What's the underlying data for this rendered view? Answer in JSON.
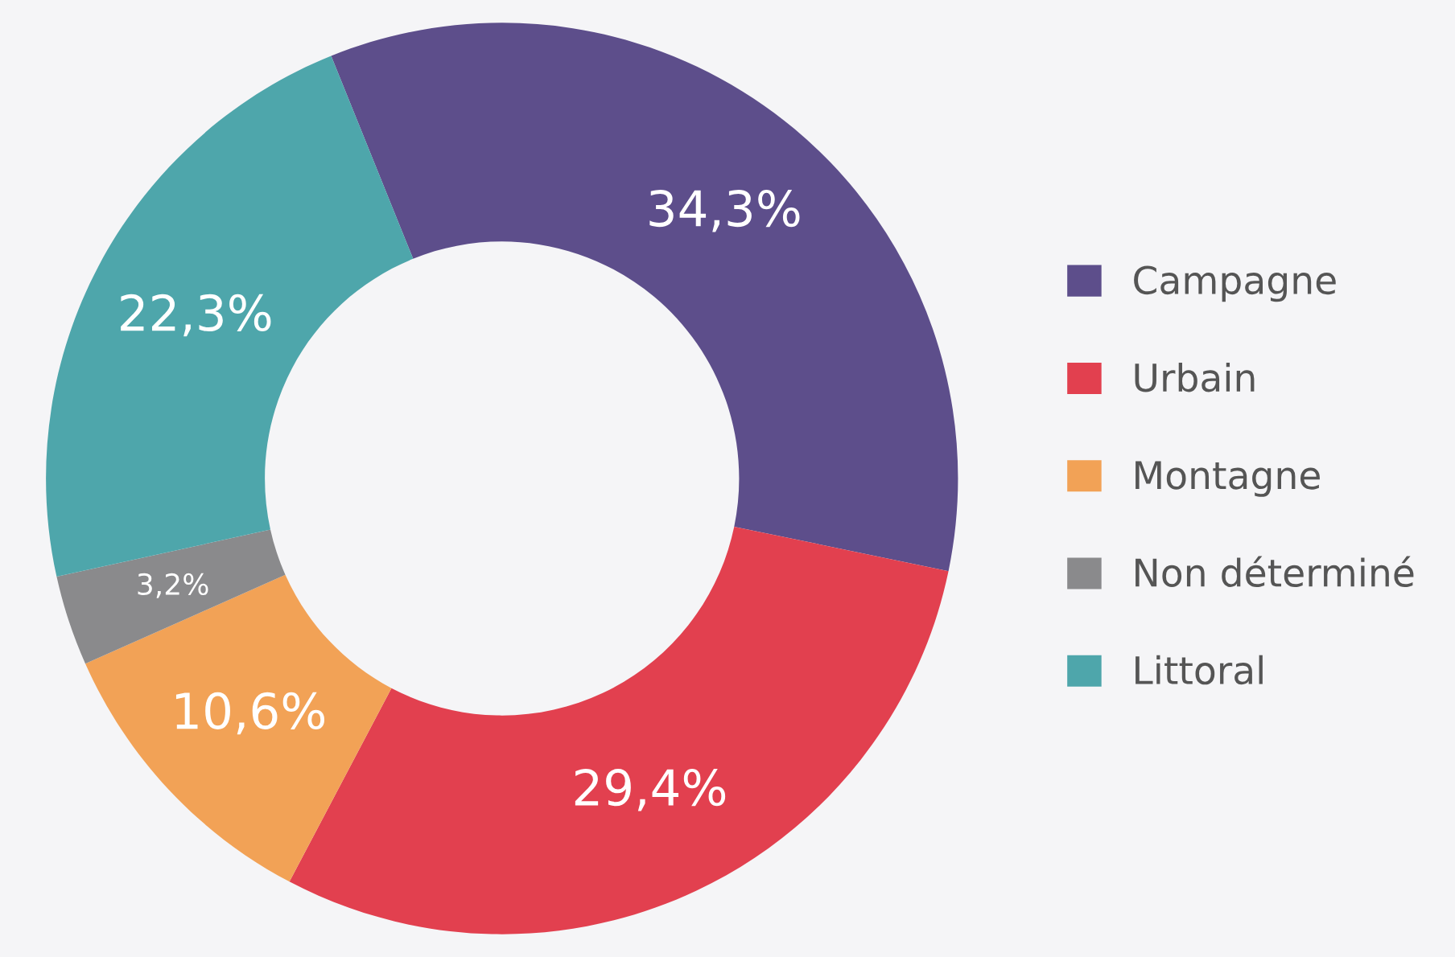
{
  "chart_data": {
    "type": "donut",
    "categories": [
      "Campagne",
      "Urbain",
      "Montagne",
      "Non déterminé",
      "Littoral"
    ],
    "values": [
      34.3,
      29.4,
      10.6,
      3.2,
      22.3
    ],
    "colors": [
      "#5d4e8b",
      "#e2404f",
      "#f2a256",
      "#8a8a8c",
      "#4ea6ab"
    ],
    "value_labels": [
      "34,3%",
      "29,4%",
      "10,6%",
      "3,2%",
      "22,3%"
    ],
    "legend": "right"
  }
}
